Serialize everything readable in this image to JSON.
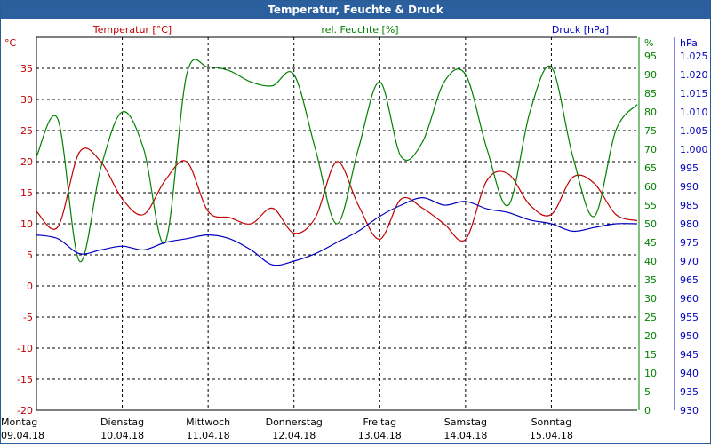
{
  "window": {
    "title": "Temperatur, Feuchte & Druck"
  },
  "colors": {
    "temperature": "#c00000",
    "humidity": "#008000",
    "pressure": "#0000c0",
    "titlebar": "#2b5f9e",
    "grid": "#000000"
  },
  "chart_data": {
    "type": "line",
    "title": "Temperatur, Feuchte & Druck",
    "x": [
      0,
      6,
      12,
      18,
      24,
      30,
      36,
      42,
      48,
      54,
      60,
      66,
      72,
      78,
      84,
      90,
      96,
      102,
      108,
      114,
      120,
      126,
      132,
      138,
      144,
      150,
      156,
      162,
      168
    ],
    "xlabel": "",
    "x_ticks": [
      {
        "day": "Montag",
        "date": "09.04.18",
        "at": 0
      },
      {
        "day": "Dienstag",
        "date": "10.04.18",
        "at": 24
      },
      {
        "day": "Mittwoch",
        "date": "11.04.18",
        "at": 48
      },
      {
        "day": "Donnerstag",
        "date": "12.04.18",
        "at": 72
      },
      {
        "day": "Freitag",
        "date": "13.04.18",
        "at": 96
      },
      {
        "day": "Samstag",
        "date": "14.04.18",
        "at": 120
      },
      {
        "day": "Sonntag",
        "date": "15.04.18",
        "at": 144
      }
    ],
    "axes": {
      "left": {
        "label": "Temperatur [°C]",
        "unit": "°C",
        "ylim": [
          -20,
          40
        ],
        "ticks": [
          "35",
          "30",
          "25",
          "20",
          "15",
          "10",
          "5",
          "0",
          "-5",
          "-10",
          "-15",
          "-20"
        ]
      },
      "right1": {
        "label": "rel. Feuchte [%]",
        "unit": "%",
        "ylim": [
          0,
          100
        ],
        "ticks": [
          "95",
          "90",
          "85",
          "80",
          "75",
          "70",
          "65",
          "60",
          "55",
          "50",
          "45",
          "40",
          "35",
          "30",
          "25",
          "20",
          "15",
          "10",
          "5",
          "0"
        ]
      },
      "right2": {
        "label": "Druck [hPa]",
        "unit": "hPa",
        "ylim": [
          930,
          1030
        ],
        "ticks": [
          "1.025",
          "1.020",
          "1.015",
          "1.010",
          "1.005",
          "1.000",
          "995",
          "990",
          "985",
          "980",
          "975",
          "970",
          "965",
          "960",
          "955",
          "950",
          "945",
          "940",
          "935",
          "930"
        ]
      }
    },
    "grid": true,
    "legend": "top",
    "series": [
      {
        "name": "Temperatur [°C]",
        "axis": "left",
        "values": [
          12,
          9.5,
          21.5,
          20,
          14,
          11.5,
          17,
          20,
          12,
          11,
          10,
          12.5,
          8.5,
          11,
          20,
          13,
          7.5,
          14,
          12.5,
          10,
          7.5,
          17,
          18,
          13,
          11.5,
          17.5,
          16.5,
          11.5,
          10.5
        ]
      },
      {
        "name": "rel. Feuchte [%]",
        "axis": "right1",
        "values": [
          68,
          78,
          40,
          65,
          80,
          70,
          45,
          90,
          92,
          91,
          88,
          87,
          90,
          70,
          50,
          70,
          88,
          68,
          72,
          88,
          90,
          70,
          55,
          80,
          92,
          68,
          52,
          75,
          82
        ]
      },
      {
        "name": "Druck [hPa]",
        "axis": "right2",
        "values": [
          977,
          976,
          972,
          973,
          974,
          973,
          975,
          976,
          977,
          976,
          973,
          969,
          970,
          972,
          975,
          978,
          982,
          985,
          987,
          985,
          986,
          984,
          983,
          981,
          980,
          978,
          979,
          980,
          980
        ]
      }
    ]
  }
}
